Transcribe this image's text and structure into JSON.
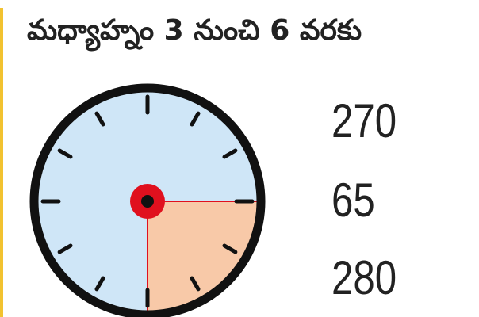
{
  "title": "మధ్యాహ్నం 3 నుంచి 6 వరకు",
  "clock": {
    "highlight_from_hour": 3,
    "highlight_to_hour": 6,
    "face_color": "#cfe6f7",
    "highlight_color": "#f8c9a8",
    "accent_color": "#e0101e"
  },
  "values": [
    "270",
    "65",
    "280"
  ],
  "edge_color": "#f2c230"
}
